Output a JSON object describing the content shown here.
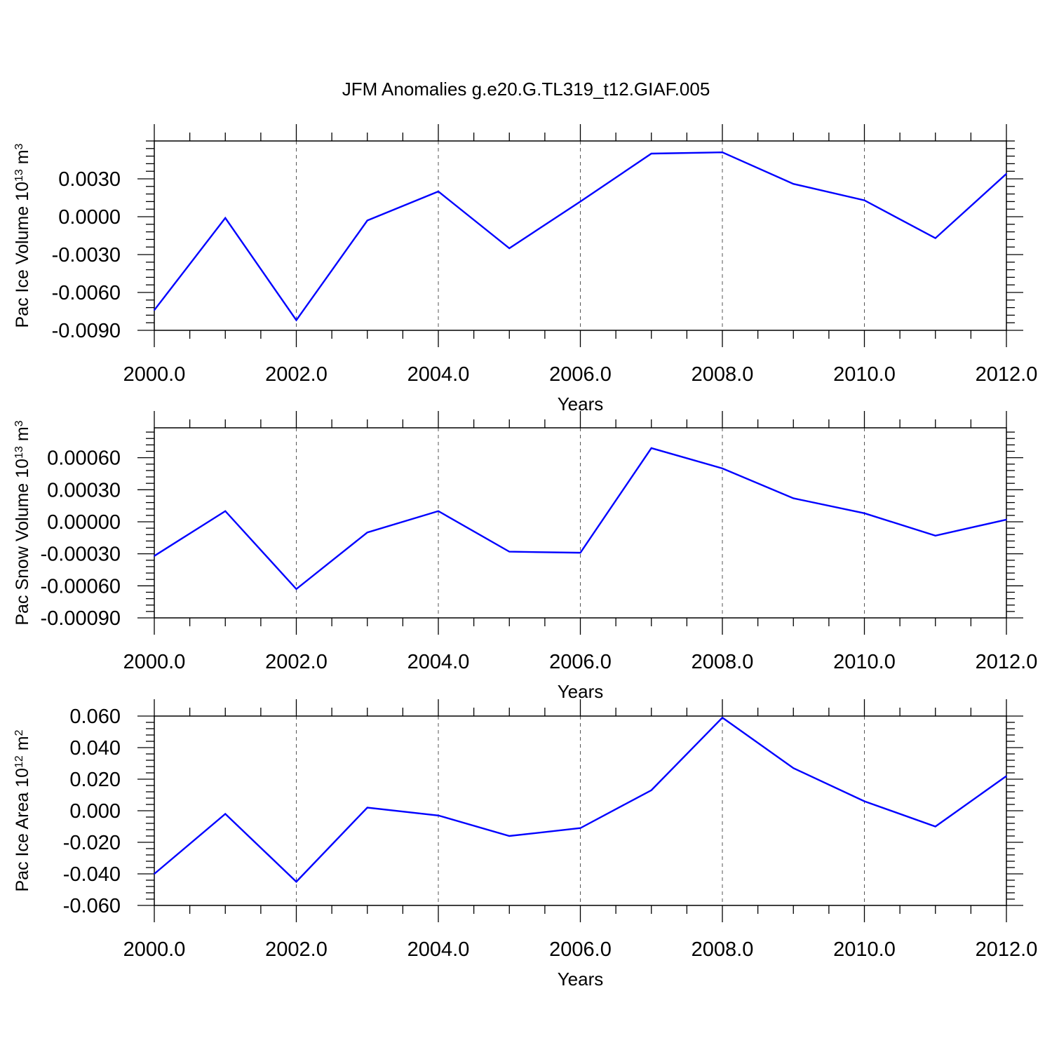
{
  "title": "JFM Anomalies g.e20.G.TL319_t12.GIAF.005",
  "colors": {
    "line": "#0000ff",
    "axis": "#000000",
    "grid": "#555555",
    "background": "#ffffff"
  },
  "chart_data": [
    {
      "type": "line",
      "xlabel": "Years",
      "ylabel_text": "Pac Ice Volume 10",
      "ylabel_exp": "13",
      "ylabel_unit": "m",
      "ylabel_unit_exp": "3",
      "xlim": [
        2000,
        2012
      ],
      "ylim": [
        -0.009,
        0.006
      ],
      "xticks": [
        2000,
        2002,
        2004,
        2006,
        2008,
        2010,
        2012
      ],
      "xtick_labels": [
        "2000.0",
        "2002.0",
        "2004.0",
        "2006.0",
        "2008.0",
        "2010.0",
        "2012.0"
      ],
      "yticks": [
        -0.009,
        -0.006,
        -0.003,
        0.0,
        0.003
      ],
      "ytick_labels": [
        "-0.0090",
        "-0.0060",
        "-0.0030",
        "0.0000",
        "0.0030"
      ],
      "grid": "vertical dashed at labeled x ticks",
      "x": [
        2000,
        2001,
        2002,
        2003,
        2004,
        2005,
        2006,
        2007,
        2008,
        2009,
        2010,
        2011,
        2012
      ],
      "values": [
        -0.0074,
        -0.0001,
        -0.0082,
        -0.0003,
        0.002,
        -0.0025,
        0.0012,
        0.005,
        0.0051,
        0.0026,
        0.0013,
        -0.0017,
        0.0034
      ]
    },
    {
      "type": "line",
      "xlabel": "Years",
      "ylabel_text": "Pac Snow Volume 10",
      "ylabel_exp": "13",
      "ylabel_unit": "m",
      "ylabel_unit_exp": "3",
      "xlim": [
        2000,
        2012
      ],
      "ylim": [
        -0.0009,
        0.00088
      ],
      "xticks": [
        2000,
        2002,
        2004,
        2006,
        2008,
        2010,
        2012
      ],
      "xtick_labels": [
        "2000.0",
        "2002.0",
        "2004.0",
        "2006.0",
        "2008.0",
        "2010.0",
        "2012.0"
      ],
      "yticks": [
        -0.0009,
        -0.0006,
        -0.0003,
        0.0,
        0.0003,
        0.0006
      ],
      "ytick_labels": [
        "-0.00090",
        "-0.00060",
        "-0.00030",
        "0.00000",
        "0.00030",
        "0.00060"
      ],
      "grid": "vertical dashed at labeled x ticks",
      "x": [
        2000,
        2001,
        2002,
        2003,
        2004,
        2005,
        2006,
        2007,
        2008,
        2009,
        2010,
        2011,
        2012
      ],
      "values": [
        -0.00032,
        0.0001,
        -0.00063,
        -0.0001,
        0.0001,
        -0.00028,
        -0.00029,
        0.00069,
        0.0005,
        0.00022,
        8e-05,
        -0.00013,
        2e-05
      ]
    },
    {
      "type": "line",
      "xlabel": "Years",
      "ylabel_text": "Pac Ice Area 10",
      "ylabel_exp": "12",
      "ylabel_unit": "m",
      "ylabel_unit_exp": "2",
      "xlim": [
        2000,
        2012
      ],
      "ylim": [
        -0.06,
        0.06
      ],
      "xticks": [
        2000,
        2002,
        2004,
        2006,
        2008,
        2010,
        2012
      ],
      "xtick_labels": [
        "2000.0",
        "2002.0",
        "2004.0",
        "2006.0",
        "2008.0",
        "2010.0",
        "2012.0"
      ],
      "yticks": [
        -0.06,
        -0.04,
        -0.02,
        0.0,
        0.02,
        0.04,
        0.06
      ],
      "ytick_labels": [
        "-0.060",
        "-0.040",
        "-0.020",
        "0.000",
        "0.020",
        "0.040",
        "0.060"
      ],
      "grid": "vertical dashed at labeled x ticks",
      "x": [
        2000,
        2001,
        2002,
        2003,
        2004,
        2005,
        2006,
        2007,
        2008,
        2009,
        2010,
        2011,
        2012
      ],
      "values": [
        -0.04,
        -0.002,
        -0.045,
        0.002,
        -0.003,
        -0.016,
        -0.011,
        0.013,
        0.059,
        0.027,
        0.006,
        -0.01,
        0.022
      ]
    }
  ]
}
